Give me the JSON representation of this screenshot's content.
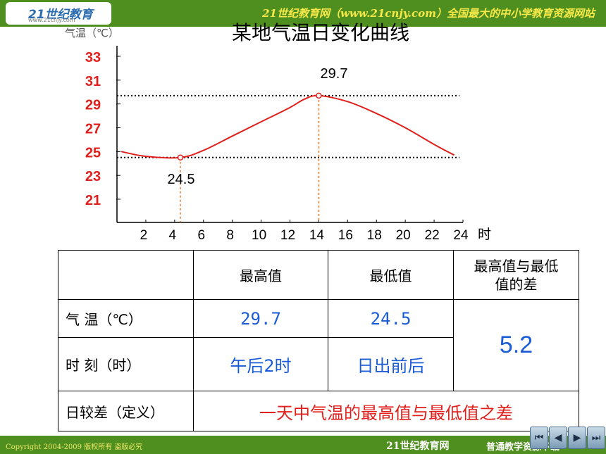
{
  "header": {
    "logo_text": "21世纪教育",
    "logo_sub": "www.21cnjy.com",
    "slogan": "21世纪教育网（www.21cnjy.com）全国最大的中小学教育资源网站"
  },
  "footer": {
    "copyright": "Copyright 2004-2009 版权所有 盗版必究",
    "brand": "21世纪教育网",
    "sub_brand": "普通教学资源下载"
  },
  "nav": [
    "first-slide-icon",
    "previous-slide-icon",
    "next-slide-icon",
    "last-slide-icon"
  ],
  "chart_data": {
    "type": "line",
    "title": "某地气温日变化曲线",
    "ylabel": "气温（℃）",
    "xlabel_unit": "时",
    "xlim": [
      0,
      24
    ],
    "ylim": [
      20,
      34
    ],
    "x_ticks": [
      "2",
      "4",
      "6",
      "8",
      "10",
      "12",
      "14",
      "16",
      "18",
      "20",
      "22",
      "24"
    ],
    "y_ticks": [
      "21",
      "23",
      "25",
      "27",
      "29",
      "31",
      "33"
    ],
    "series": [
      {
        "color": "#e0201d",
        "points": [
          [
            0.3,
            25.0
          ],
          [
            2,
            24.6
          ],
          [
            4.4,
            24.5
          ],
          [
            6,
            25.1
          ],
          [
            8,
            26.3
          ],
          [
            10,
            27.5
          ],
          [
            12,
            28.7
          ],
          [
            13,
            29.4
          ],
          [
            14,
            29.7
          ],
          [
            16,
            29.2
          ],
          [
            18,
            28.2
          ],
          [
            20,
            27.0
          ],
          [
            22,
            25.6
          ],
          [
            23.4,
            24.7
          ]
        ]
      }
    ],
    "annotations": [
      {
        "label": "29.7",
        "x": 14,
        "y": 29.7
      },
      {
        "label": "24.5",
        "x": 4.4,
        "y": 24.5
      }
    ],
    "grid": false,
    "legend": "none",
    "colors": {
      "axis_tick_labels_y": "#e0201d",
      "guide_max_vertical": "#f07a2b",
      "guide_min_vertical": "#f07a2b",
      "horizontal_guides": "#000000"
    }
  },
  "table": {
    "headers": [
      "",
      "最高值",
      "最低值",
      "最高值与最低\n值的差"
    ],
    "rows": [
      {
        "label": "气  温（℃）",
        "max": "29.7",
        "min": "24.5"
      },
      {
        "label": "时  刻（时）",
        "max": "午后2时",
        "min": "日出前后"
      }
    ],
    "diff": "5.2",
    "definition_label": "日较差（定义）",
    "definition": "一天中气温的最高值与最低值之差"
  }
}
